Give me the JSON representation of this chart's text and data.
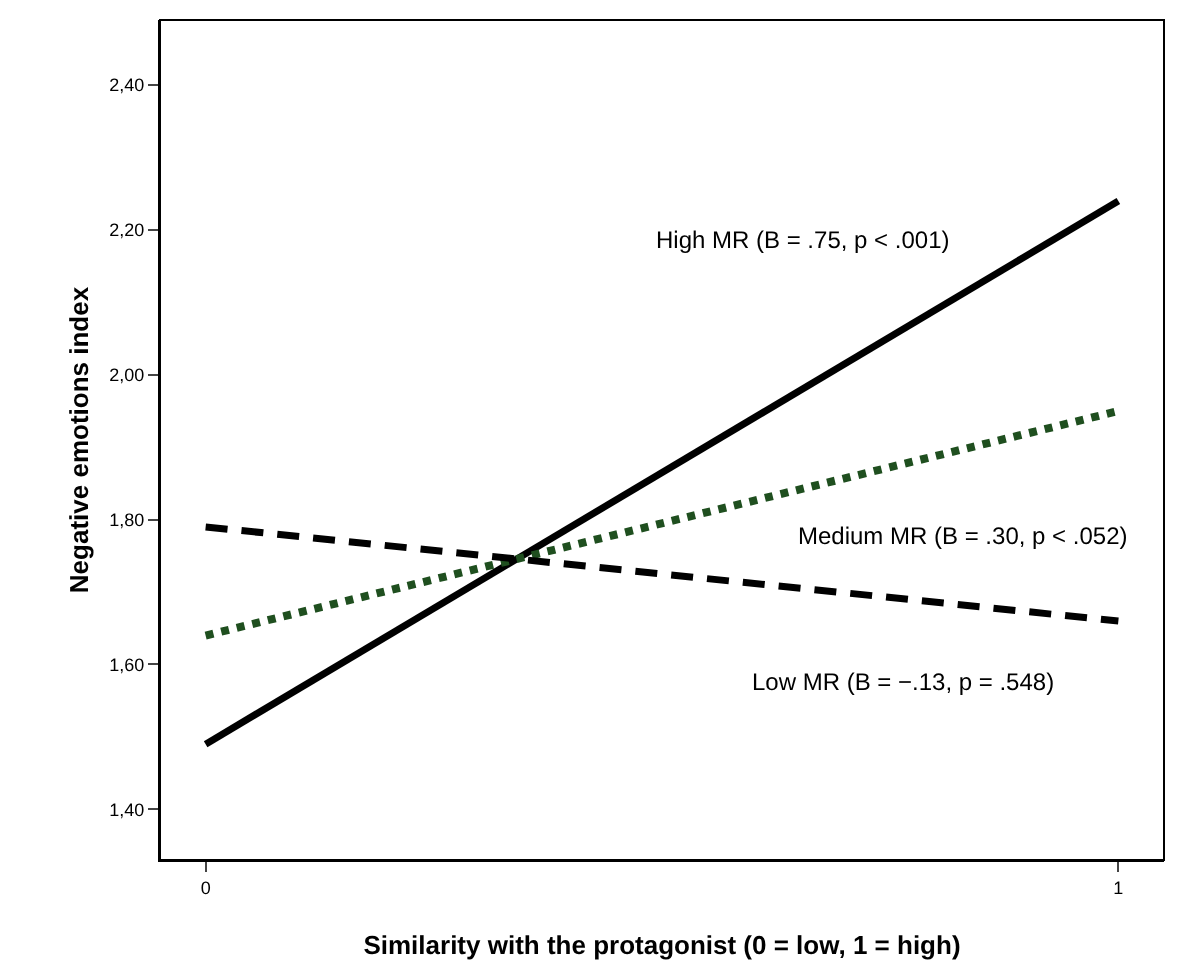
{
  "chart_data": {
    "type": "line",
    "xlabel": "Similarity with the protagonist (0 = low, 1 = high)",
    "ylabel": "Negative emotions index",
    "x": [
      0,
      1
    ],
    "series": [
      {
        "color": "#000000",
        "values": [
          1.49,
          2.24
        ],
        "line_style": "solid"
      },
      {
        "color": "#1f4f1f",
        "values": [
          1.64,
          1.95
        ],
        "line_style": "dotted"
      },
      {
        "color": "#000000",
        "values": [
          1.79,
          1.66
        ],
        "line_style": "dashed"
      }
    ],
    "xlim": [
      -0.05,
      1.05
    ],
    "ylim": [
      1.33,
      2.49
    ],
    "xticks": [
      0,
      1
    ],
    "yticks": [
      {
        "value": 1.4,
        "label": "1,40"
      },
      {
        "value": 1.6,
        "label": "1,60"
      },
      {
        "value": 1.8,
        "label": "1,80"
      },
      {
        "value": 2.0,
        "label": "2,00"
      },
      {
        "value": 2.2,
        "label": "2,20"
      },
      {
        "value": 2.4,
        "label": "2,40"
      }
    ],
    "annotations": [
      "High MR (B = .75, p < .001)",
      "Medium MR (B = .30, p < .052)",
      "Low MR (B = −.13, p = .548)"
    ],
    "grid": false,
    "marker": "none"
  }
}
